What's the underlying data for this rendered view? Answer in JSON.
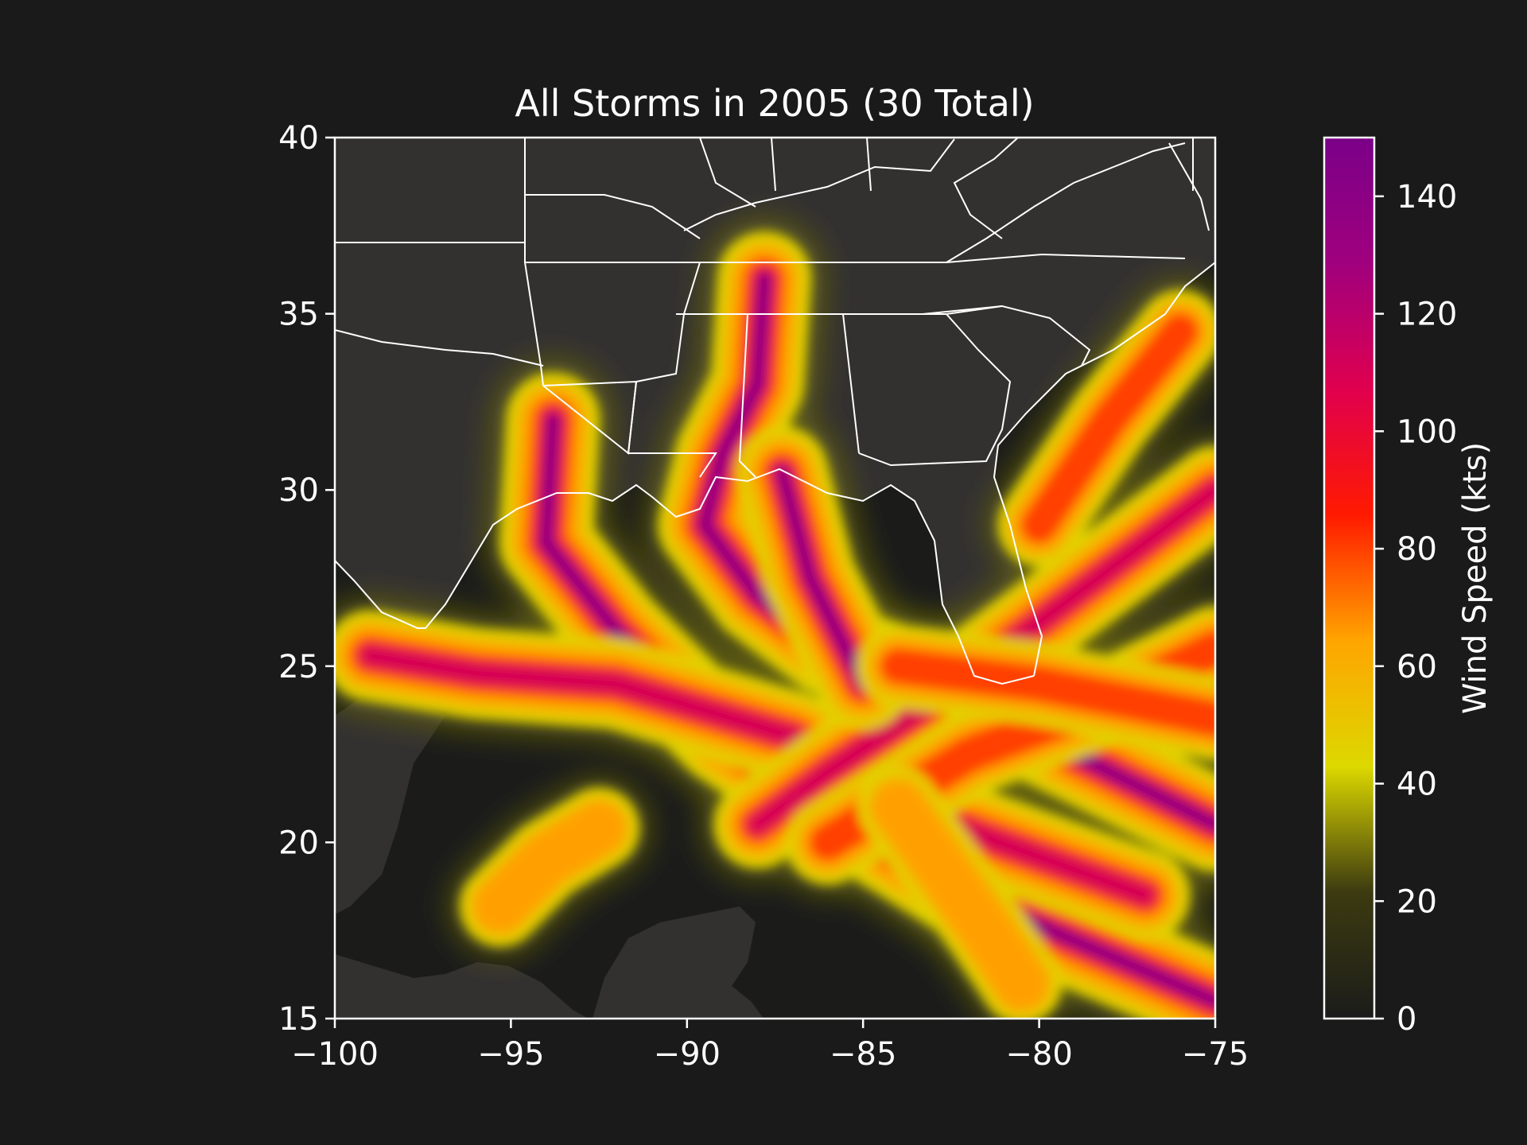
{
  "title": "All Storms in 2005 (30 Total)",
  "colorbar": {
    "label": "Wind Speed (kts)",
    "ticks": [
      "0",
      "20",
      "40",
      "60",
      "80",
      "100",
      "120",
      "140"
    ],
    "range": [
      0,
      150
    ],
    "colors": [
      "#1b1c1a",
      "#3c3a10",
      "#dcd800",
      "#ffa500",
      "#ff1a00",
      "#e0004e",
      "#a0007e",
      "#7a0088"
    ]
  },
  "map": {
    "x_ticks": [
      "−100",
      "−95",
      "−90",
      "−85",
      "−80",
      "−75"
    ],
    "y_ticks": [
      "15",
      "20",
      "25",
      "30",
      "35",
      "40"
    ],
    "lon_range": [
      -100,
      -75
    ],
    "lat_range": [
      15,
      40
    ],
    "land_color": "#333130",
    "water_color": "#1b1c1a",
    "border_color": "#ffffff"
  },
  "chart_data": {
    "type": "heatmap",
    "title": "All Storms in 2005 (30 Total)",
    "xlim": [
      -100,
      -75
    ],
    "ylim": [
      15,
      40
    ],
    "colorbar_label": "Wind Speed (kts)",
    "colorbar_range": [
      0,
      150
    ],
    "tracks": [
      {
        "points": [
          [
            -75,
            20.5
          ],
          [
            -79,
            22.5
          ],
          [
            -83,
            24.5
          ],
          [
            -86,
            25.5
          ],
          [
            -88,
            27
          ],
          [
            -89.5,
            29
          ],
          [
            -89,
            31
          ],
          [
            -88,
            33
          ],
          [
            -87.8,
            36
          ]
        ],
        "peak_kts": 150
      },
      {
        "points": [
          [
            -75,
            15.5
          ],
          [
            -82,
            18.5
          ],
          [
            -86,
            21
          ],
          [
            -89,
            23
          ],
          [
            -92,
            26
          ],
          [
            -94,
            28.5
          ],
          [
            -93.8,
            32
          ]
        ],
        "peak_kts": 150
      },
      {
        "points": [
          [
            -77,
            18.5
          ],
          [
            -82.5,
            20.5
          ],
          [
            -87,
            23
          ],
          [
            -92,
            24.5
          ],
          [
            -96,
            24.8
          ],
          [
            -99,
            25.3
          ]
        ],
        "peak_kts": 130
      },
      {
        "points": [
          [
            -75,
            30
          ],
          [
            -79,
            27
          ],
          [
            -83,
            24
          ],
          [
            -86,
            22
          ],
          [
            -88,
            20.5
          ]
        ],
        "peak_kts": 110
      },
      {
        "points": [
          [
            -75,
            25.5
          ],
          [
            -78,
            24
          ],
          [
            -82,
            22.5
          ],
          [
            -86,
            20
          ]
        ],
        "peak_kts": 90
      },
      {
        "points": [
          [
            -85,
            24.5
          ],
          [
            -86.5,
            27.5
          ],
          [
            -87.3,
            30.5
          ]
        ],
        "peak_kts": 140
      },
      {
        "points": [
          [
            -75,
            23.5
          ],
          [
            -80,
            24.5
          ],
          [
            -84,
            25
          ]
        ],
        "peak_kts": 80
      },
      {
        "points": [
          [
            -80,
            29
          ],
          [
            -78,
            32
          ],
          [
            -76,
            34.5
          ]
        ],
        "peak_kts": 80
      },
      {
        "points": [
          [
            -95.3,
            18.2
          ],
          [
            -94,
            19.5
          ],
          [
            -92.5,
            20.4
          ]
        ],
        "peak_kts": 70
      },
      {
        "points": [
          [
            -84,
            21
          ],
          [
            -81.5,
            17.5
          ],
          [
            -80.5,
            16
          ]
        ],
        "peak_kts": 70
      }
    ]
  }
}
